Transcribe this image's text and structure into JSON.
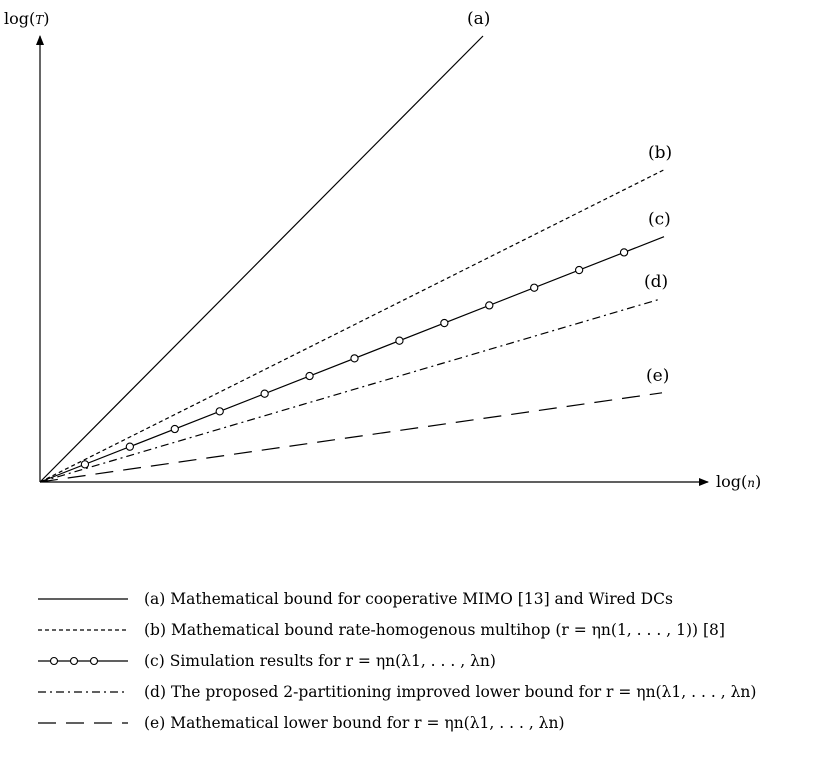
{
  "chart_data": {
    "type": "line",
    "xlabel": "log(n)",
    "ylabel": "log(T)",
    "x": [
      0,
      100
    ],
    "series": [
      {
        "id": "a",
        "tag": "(a)",
        "style": "solid",
        "values": [
          0,
          100
        ]
      },
      {
        "id": "b",
        "tag": "(b)",
        "style": "dashed",
        "values": [
          0,
          70
        ]
      },
      {
        "id": "c",
        "tag": "(c)",
        "style": "solid-circles",
        "values": [
          0,
          55
        ]
      },
      {
        "id": "d",
        "tag": "(d)",
        "style": "dashdot",
        "values": [
          0,
          41
        ]
      },
      {
        "id": "e",
        "tag": "(e)",
        "style": "longdash",
        "values": [
          0,
          20
        ]
      }
    ],
    "c_markers_x": [
      7.2,
      14.4,
      21.6,
      28.8,
      36.0,
      43.2,
      50.4,
      57.6,
      64.8,
      72.0,
      79.2,
      86.4,
      93.6
    ]
  },
  "legend": [
    {
      "id": "a",
      "text": "(a) Mathematical bound for cooperative MIMO [13] and Wired DCs"
    },
    {
      "id": "b",
      "text": "(b) Mathematical bound rate-homogenous multihop (r = ηn(1, . . . , 1)) [8]"
    },
    {
      "id": "c",
      "text": "(c) Simulation results for r = ηn(λ1, . . . , λn)"
    },
    {
      "id": "d",
      "text": "(d) The proposed 2-partitioning improved lower bound for r = ηn(λ1, . . . , λn)"
    },
    {
      "id": "e",
      "text": "(e) Mathematical lower bound for r = ηn(λ1, . . . , λn)"
    }
  ]
}
